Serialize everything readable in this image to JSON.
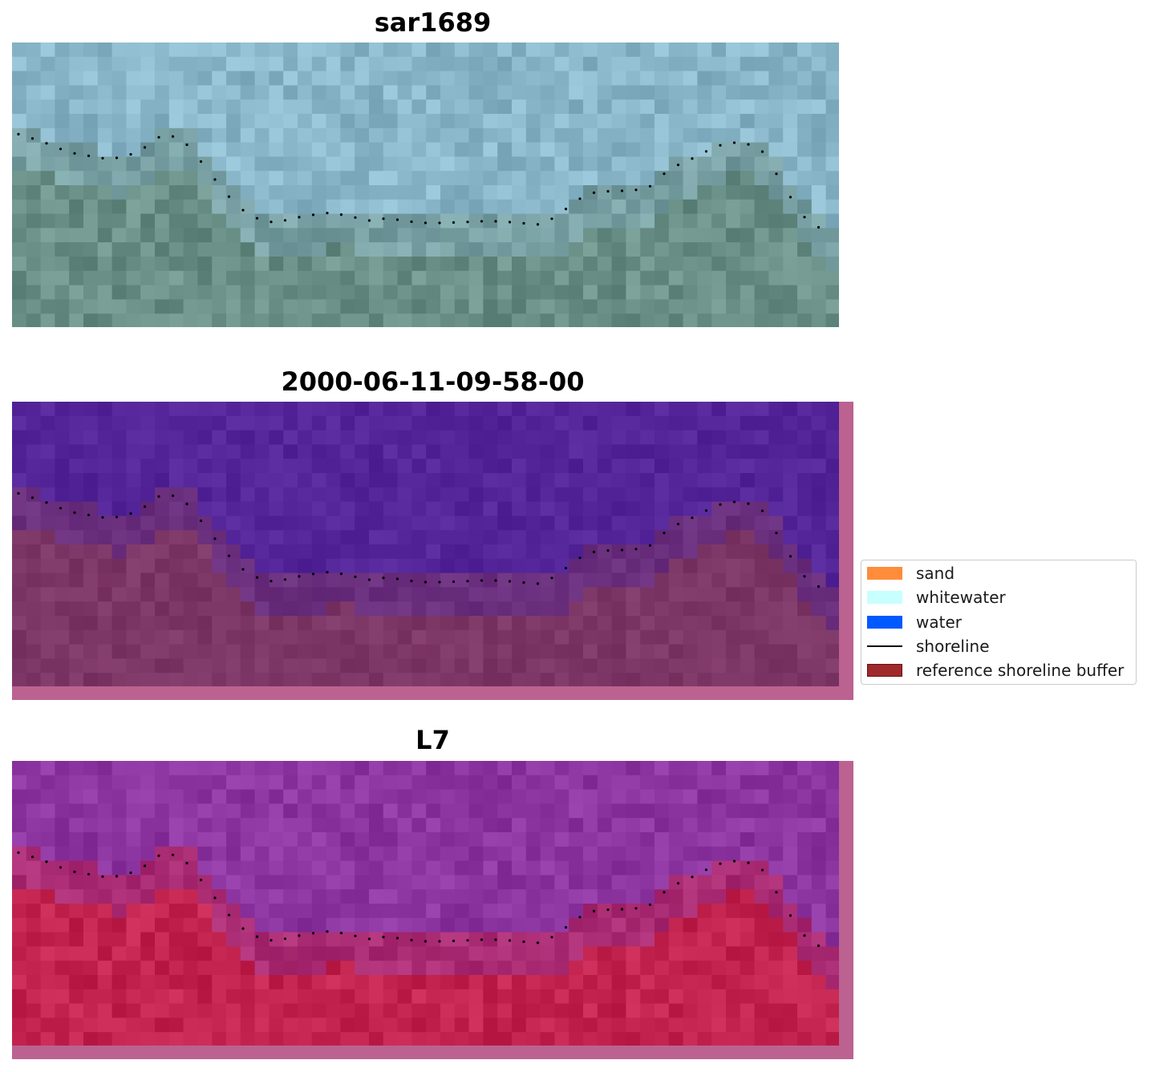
{
  "panels": [
    {
      "title": "sar1689",
      "style": "rgb"
    },
    {
      "title": "2000-06-11-09-58-00",
      "style": "classified"
    },
    {
      "title": "L7",
      "style": "index"
    }
  ],
  "legend": {
    "items": [
      {
        "label": "sand",
        "color": "#ff8c3a",
        "kind": "patch"
      },
      {
        "label": "whitewater",
        "color": "#c8ffff",
        "kind": "patch"
      },
      {
        "label": "water",
        "color": "#0059ff",
        "kind": "patch"
      },
      {
        "label": "shoreline",
        "color": "#000000",
        "kind": "line"
      },
      {
        "label": "reference shoreline buffer",
        "color": "#9e2a2b",
        "kind": "patch-edge"
      }
    ]
  },
  "colors": {
    "rgb_water": "#8ab6c9",
    "rgb_land": "#6a8f86",
    "class_water": "#532599",
    "class_land": "#7d3767",
    "class_buffer": "#bb6291",
    "index_water": "#8c35a0",
    "index_land": "#c2244f",
    "shoreline_points": "#000000"
  }
}
